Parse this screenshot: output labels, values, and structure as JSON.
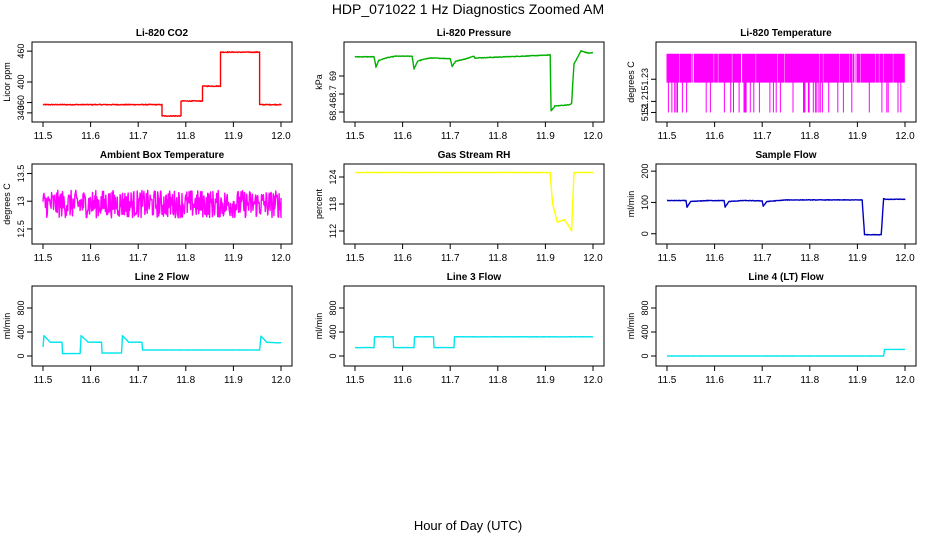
{
  "figure": {
    "title": "HDP_071022  1 Hz Diagnostics Zoomed AM",
    "xcaption": "Hour of Day (UTC)"
  },
  "chart_data": [
    {
      "type": "line",
      "title": "Li-820 CO2",
      "ylabel": "Licor ppm",
      "color": "#ff0000",
      "xlim": [
        11.5,
        12.0
      ],
      "ylim": [
        330,
        470
      ],
      "xticks": [
        11.5,
        11.6,
        11.7,
        11.8,
        11.9,
        12.0
      ],
      "yticks": [
        340,
        360,
        400,
        460
      ],
      "noise": 0.8,
      "x": [
        11.5,
        11.75,
        11.75,
        11.79,
        11.79,
        11.835,
        11.835,
        11.873,
        11.873,
        11.955,
        11.955,
        12.0
      ],
      "y": [
        356,
        356,
        334,
        334,
        363,
        363,
        392,
        392,
        458,
        458,
        356,
        356
      ]
    },
    {
      "type": "line",
      "title": "Li-820 Pressure",
      "ylabel": "kPa",
      "color": "#00b000",
      "xlim": [
        11.5,
        12.0
      ],
      "ylim": [
        68.3,
        69.5
      ],
      "xticks": [
        11.5,
        11.6,
        11.7,
        11.8,
        11.9,
        12.0
      ],
      "yticks": [
        68.4,
        68.7,
        69.0
      ],
      "noise": 0.005,
      "x": [
        11.5,
        11.54,
        11.544,
        11.55,
        11.565,
        11.585,
        11.62,
        11.624,
        11.632,
        11.65,
        11.66,
        11.7,
        11.704,
        11.712,
        11.73,
        11.75,
        11.752,
        11.85,
        11.91,
        11.912,
        11.92,
        11.95,
        11.955,
        11.96,
        11.975,
        11.99,
        12.0
      ],
      "y": [
        69.32,
        69.32,
        69.15,
        69.26,
        69.3,
        69.33,
        69.33,
        69.12,
        69.25,
        69.29,
        69.3,
        69.29,
        69.16,
        69.25,
        69.28,
        69.33,
        69.3,
        69.33,
        69.35,
        68.42,
        68.5,
        68.52,
        68.54,
        69.2,
        69.42,
        69.38,
        69.39
      ]
    },
    {
      "type": "line",
      "title": "Li-820 Temperature",
      "ylabel": "degrees C",
      "color": "#ff00ff",
      "xlim": [
        11.5,
        12.0
      ],
      "ylim": [
        51.195,
        51.26
      ],
      "xticks": [
        11.5,
        11.6,
        11.7,
        11.8,
        11.9,
        12.0
      ],
      "yticks": [
        51.2,
        51.21,
        51.23
      ],
      "levels": [
        51.2,
        51.227,
        51.253
      ]
    },
    {
      "type": "line",
      "title": "Ambient Box Temperature",
      "ylabel": "degrees C",
      "color": "#ff00ff",
      "xlim": [
        11.5,
        12.0
      ],
      "ylim": [
        12.3,
        13.6
      ],
      "xticks": [
        11.5,
        11.6,
        11.7,
        11.8,
        11.9,
        12.0
      ],
      "yticks": [
        12.5,
        13.0,
        13.5
      ],
      "noise": 0.25,
      "x": [
        11.5,
        12.0
      ],
      "y": [
        12.95,
        12.95
      ]
    },
    {
      "type": "line",
      "title": "Gas Stream RH",
      "ylabel": "percent",
      "color": "#ffff00",
      "xlim": [
        11.5,
        12.0
      ],
      "ylim": [
        110,
        126
      ],
      "xticks": [
        11.5,
        11.6,
        11.7,
        11.8,
        11.9,
        12.0
      ],
      "yticks": [
        112,
        118,
        124
      ],
      "noise": 0.05,
      "x": [
        11.5,
        11.91,
        11.915,
        11.925,
        11.94,
        11.95,
        11.955,
        11.96,
        12.0
      ],
      "y": [
        125,
        125,
        118,
        114,
        114.5,
        113,
        112,
        125,
        125
      ]
    },
    {
      "type": "line",
      "title": "Sample Flow",
      "ylabel": "ml/min",
      "color": "#0000c0",
      "xlim": [
        11.5,
        12.0
      ],
      "ylim": [
        -20,
        210
      ],
      "xticks": [
        11.5,
        11.6,
        11.7,
        11.8,
        11.9,
        12.0
      ],
      "yticks": [
        0,
        100,
        200
      ],
      "noise": 0.8,
      "x": [
        11.5,
        11.54,
        11.542,
        11.55,
        11.585,
        11.62,
        11.622,
        11.63,
        11.66,
        11.7,
        11.702,
        11.71,
        11.75,
        11.91,
        11.915,
        11.95,
        11.955,
        11.96,
        12.0
      ],
      "y": [
        106,
        106,
        85,
        103,
        106,
        106,
        85,
        103,
        106,
        105,
        88,
        103,
        108,
        108,
        -3,
        -3,
        112,
        110,
        110
      ]
    },
    {
      "type": "line",
      "title": "Line 2 Flow",
      "ylabel": "ml/min",
      "color": "#00e5ee",
      "xlim": [
        11.5,
        12.0
      ],
      "ylim": [
        -100,
        1100
      ],
      "xticks": [
        11.5,
        11.6,
        11.7,
        11.8,
        11.9,
        12.0
      ],
      "yticks": [
        0,
        400,
        800
      ],
      "noise": 2,
      "x": [
        11.5,
        11.502,
        11.515,
        11.54,
        11.541,
        11.578,
        11.58,
        11.595,
        11.623,
        11.624,
        11.665,
        11.667,
        11.68,
        11.708,
        11.709,
        11.75,
        11.955,
        11.958,
        11.97,
        11.99,
        12.0
      ],
      "y": [
        150,
        340,
        230,
        230,
        40,
        40,
        340,
        230,
        230,
        50,
        50,
        340,
        230,
        230,
        100,
        100,
        100,
        330,
        230,
        220,
        220
      ]
    },
    {
      "type": "line",
      "title": "Line 3 Flow",
      "ylabel": "ml/min",
      "color": "#00e5ee",
      "xlim": [
        11.5,
        12.0
      ],
      "ylim": [
        -100,
        1100
      ],
      "xticks": [
        11.5,
        11.6,
        11.7,
        11.8,
        11.9,
        12.0
      ],
      "yticks": [
        0,
        400,
        800
      ],
      "noise": 2,
      "x": [
        11.5,
        11.54,
        11.541,
        11.58,
        11.581,
        11.624,
        11.625,
        11.665,
        11.666,
        11.708,
        11.709,
        12.0
      ],
      "y": [
        140,
        140,
        320,
        320,
        140,
        140,
        320,
        320,
        140,
        140,
        320,
        320
      ]
    },
    {
      "type": "line",
      "title": "Line 4 (LT) Flow",
      "ylabel": "ml/min",
      "color": "#00e5ee",
      "xlim": [
        11.5,
        12.0
      ],
      "ylim": [
        -100,
        1100
      ],
      "xticks": [
        11.5,
        11.6,
        11.7,
        11.8,
        11.9,
        12.0
      ],
      "yticks": [
        0,
        400,
        800
      ],
      "noise": 1,
      "x": [
        11.5,
        11.955,
        11.957,
        12.0
      ],
      "y": [
        0,
        0,
        110,
        110
      ]
    }
  ]
}
